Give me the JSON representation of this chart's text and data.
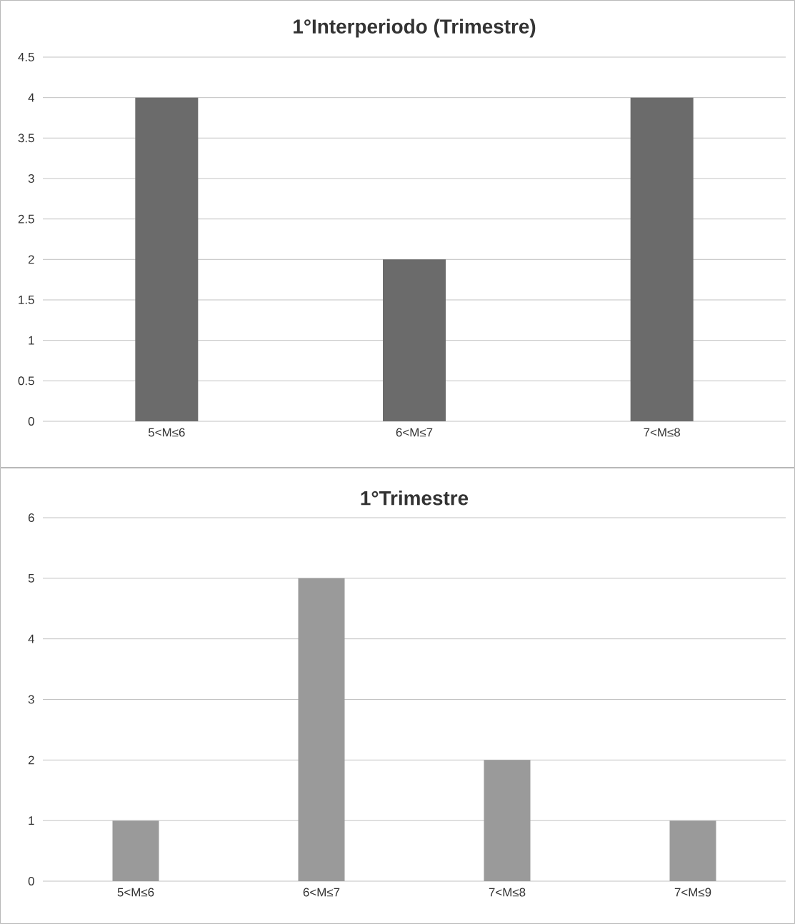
{
  "chart_data": [
    {
      "type": "bar",
      "title": "1°Interperiodo (Trimestre)",
      "categories": [
        "5<M≤6",
        "6<M≤7",
        "7<M≤8"
      ],
      "values": [
        4,
        2,
        4
      ],
      "color": "#6b6b6b",
      "ylim": [
        0,
        4.5
      ],
      "yticks": [
        0,
        0.5,
        1,
        1.5,
        2,
        2.5,
        3,
        3.5,
        4,
        4.5
      ],
      "grid": "y"
    },
    {
      "type": "bar",
      "title": "1°Trimestre",
      "categories": [
        "5<M≤6",
        "6<M≤7",
        "7<M≤8",
        "7<M≤9"
      ],
      "values": [
        1,
        5,
        2,
        1
      ],
      "color": "#9a9a9a",
      "ylim": [
        0,
        6
      ],
      "yticks": [
        0,
        1,
        2,
        3,
        4,
        5,
        6
      ],
      "grid": "y"
    }
  ]
}
